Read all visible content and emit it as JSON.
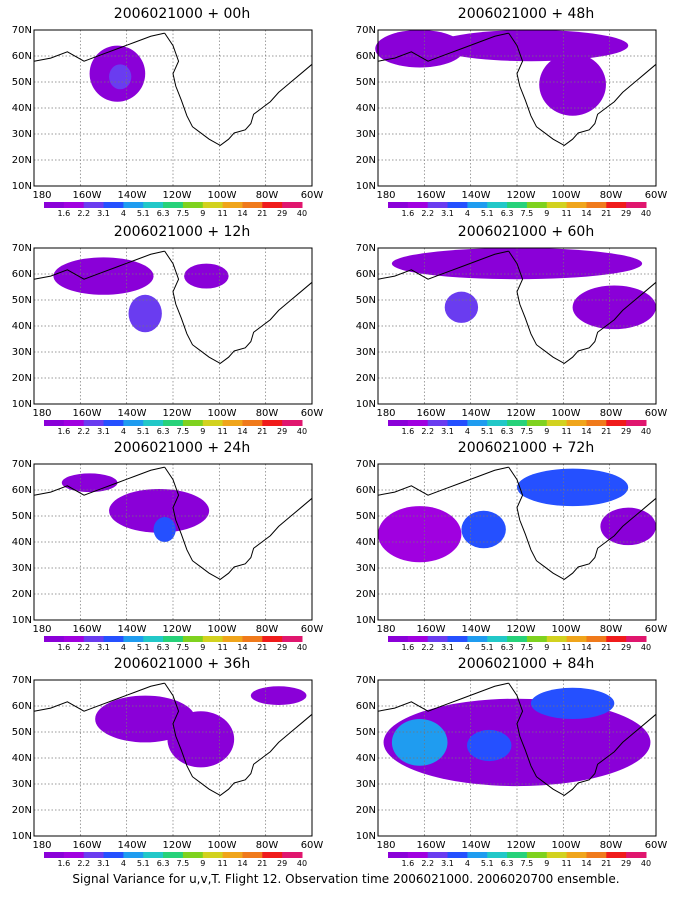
{
  "colorbar": {
    "labels": [
      "1.6",
      "2.2",
      "3.1",
      "4",
      "5.1",
      "6.3",
      "7.5",
      "9",
      "11",
      "14",
      "21",
      "29",
      "40"
    ],
    "colors": [
      "#8a00d8",
      "#a000e0",
      "#6a3cf0",
      "#2550ff",
      "#1f9cf0",
      "#22c8c8",
      "#27d27a",
      "#7fd21f",
      "#d2d21f",
      "#f0a51b",
      "#f07a1b",
      "#f01b1b",
      "#e0166e"
    ]
  },
  "axes": {
    "lat_labels": [
      "70N",
      "60N",
      "50N",
      "40N",
      "30N",
      "20N",
      "10N"
    ],
    "lon_labels": [
      "180",
      "160W",
      "140W",
      "120W",
      "100W",
      "80W",
      "60W"
    ]
  },
  "panels": [
    {
      "title": "2006021000 + 00h"
    },
    {
      "title": "2006021000 + 48h"
    },
    {
      "title": "2006021000 + 12h"
    },
    {
      "title": "2006021000 + 60h"
    },
    {
      "title": "2006021000 + 24h"
    },
    {
      "title": "2006021000 + 72h"
    },
    {
      "title": "2006021000 + 36h"
    },
    {
      "title": "2006021000 + 84h"
    }
  ],
  "footer": "Signal Variance for u,v,T. Flight 12. Observation time 2006021000. 2006020700 ensemble."
}
